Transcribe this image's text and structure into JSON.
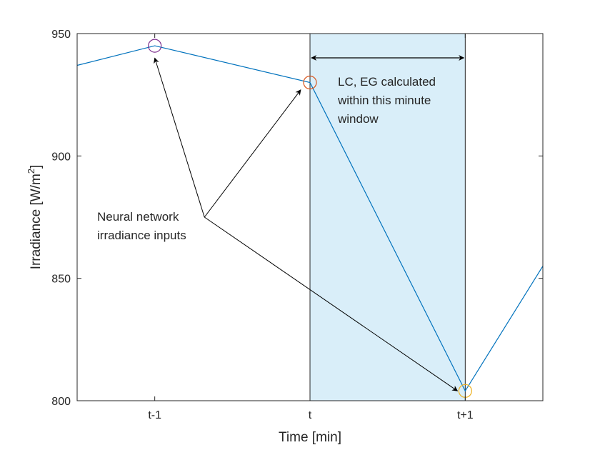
{
  "chart_data": {
    "type": "line",
    "title": "",
    "xlabel": "Time [min]",
    "ylabel_main": "Irradiance [W/m",
    "ylabel_sup": "2",
    "ylabel_close": "]",
    "xlim": [
      -1.5,
      1.5
    ],
    "ylim": [
      800,
      950
    ],
    "x_ticks": [
      {
        "value": -1,
        "label": "t-1"
      },
      {
        "value": 0,
        "label": "t"
      },
      {
        "value": 1,
        "label": "t+1"
      }
    ],
    "y_ticks": [
      {
        "value": 800,
        "label": "800"
      },
      {
        "value": 850,
        "label": "850"
      },
      {
        "value": 900,
        "label": "900"
      },
      {
        "value": 950,
        "label": "950"
      }
    ],
    "series": [
      {
        "color": "#0072bd",
        "points": [
          [
            -1.5,
            937
          ],
          [
            -1,
            945
          ],
          [
            0,
            930
          ],
          [
            1,
            804
          ],
          [
            1.5,
            855
          ]
        ]
      }
    ],
    "markers": [
      {
        "x": -1,
        "y": 945,
        "color": "#7e2f8e"
      },
      {
        "x": 0,
        "y": 930,
        "color": "#d95319"
      },
      {
        "x": 1,
        "y": 804,
        "color": "#edb120"
      }
    ],
    "window": {
      "x_start": 0,
      "x_end": 1,
      "color": "#d9eef9"
    },
    "window_annotation": [
      "LC, EG calculated",
      "within this minute",
      "window"
    ],
    "network_annotation": [
      "Neural network",
      "irradiance inputs"
    ],
    "arrow_origin": {
      "x": -0.68,
      "y": 875
    },
    "arrow_targets": [
      {
        "x": -1,
        "y": 940
      },
      {
        "x": -0.06,
        "y": 927
      },
      {
        "x": 0.95,
        "y": 804
      }
    ]
  }
}
